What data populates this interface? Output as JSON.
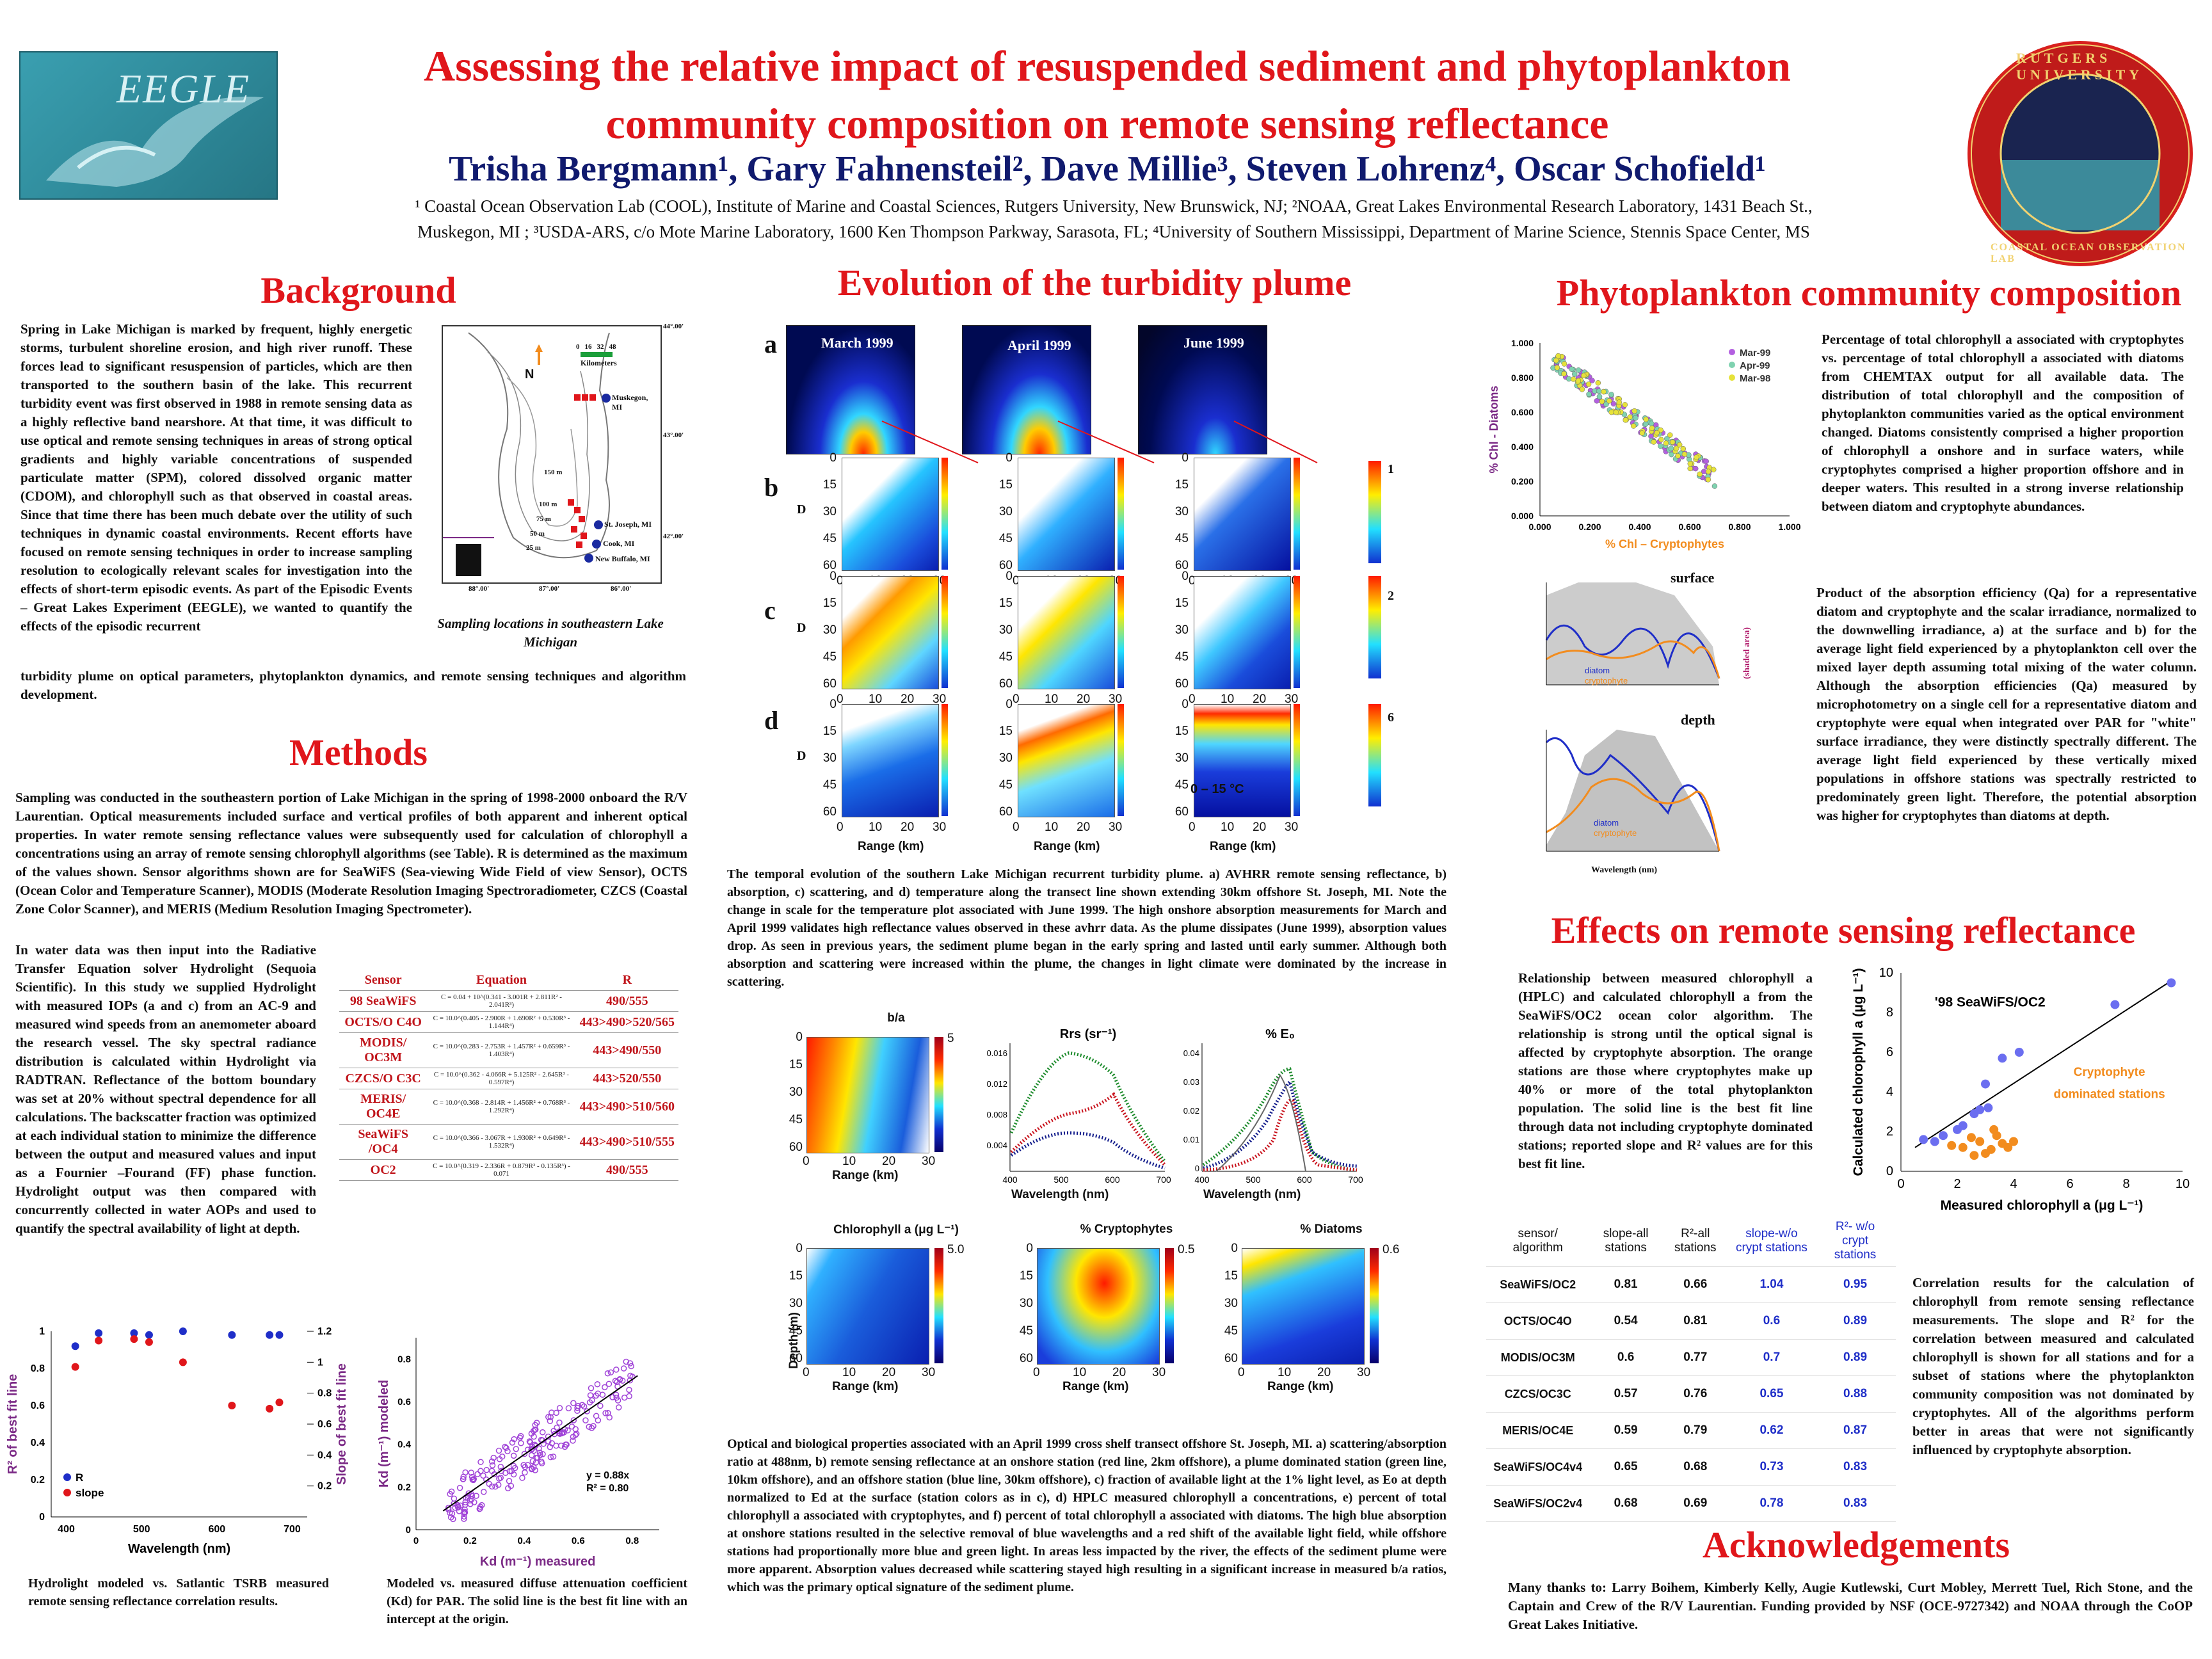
{
  "header": {
    "title_line1": "Assessing the relative impact of resuspended sediment and phytoplankton",
    "title_line2": "community composition on remote sensing reflectance",
    "authors": "Trisha Bergmann¹, Gary Fahnensteil², Dave Millie³, Steven Lohrenz⁴, Oscar Schofield¹",
    "affil_line1": "¹ Coastal Ocean Observation Lab (COOL), Institute of Marine and Coastal Sciences, Rutgers University, New Brunswick, NJ; ²NOAA, Great Lakes Environmental Research Laboratory, 1431 Beach St.,",
    "affil_line2": "Muskegon, MI ; ³USDA-ARS, c/o Mote Marine Laboratory, 1600 Ken Thompson Parkway, Sarasota, FL; ⁴University of Southern Mississippi, Department of Marine Science, Stennis Space Center, MS",
    "left_logo_text": "EEGLE",
    "right_logo_top": "RUTGERS UNIVERSITY",
    "right_logo_bottom": "COASTAL OCEAN OBSERVATION LAB"
  },
  "background": {
    "heading": "Background",
    "text": "Spring in Lake Michigan is marked by frequent, highly energetic storms, turbulent shoreline erosion, and high river runoff. These forces lead to significant resuspension of particles, which are then transported to the southern basin of the lake. This recurrent turbidity event was first observed in 1988 in remote sensing data as a highly reflective band nearshore. At that time, it was difficult to use optical and remote sensing techniques in areas of strong optical gradients and highly variable concentrations of suspended particulate matter (SPM), colored dissolved organic matter (CDOM), and chlorophyll such as that observed in coastal areas. Since that time there has been much debate over the utility of such techniques in dynamic coastal environments. Recent efforts have focused on remote sensing techniques in order to increase sampling resolution to ecologically relevant scales for investigation into the effects of short-term episodic events. As part of the Episodic Events – Great Lakes Experiment (EEGLE), we wanted to quantify the effects of the episodic recurrent",
    "text_cont": "turbidity plume on optical parameters, phytoplankton dynamics, and remote sensing techniques and algorithm development.",
    "map_caption": "Sampling locations in southeastern Lake Michigan",
    "map_labels": [
      "Kilometers",
      "N",
      "Muskegon, MI",
      "St. Joseph, MI",
      "Cook, MI",
      "New Buffalo, MI",
      "150 m",
      "100 m",
      "75 m",
      "50 m",
      "25 m",
      "44°.00'",
      "43°.00'",
      "42°.00'",
      "88°.00'",
      "87°.00'",
      "86°.00'",
      "0",
      "16",
      "32",
      "48"
    ]
  },
  "methods": {
    "heading": "Methods",
    "text1": "Sampling was conducted in the southeastern portion of Lake Michigan in the spring of 1998-2000 onboard the R/V Laurentian. Optical measurements included surface and vertical profiles of both apparent and inherent optical properties. In water remote sensing reflectance values were subsequently used for calculation of chlorophyll a concentrations using an array of remote sensing chlorophyll algorithms (see Table). R is determined as the maximum of the values shown. Sensor algorithms shown are for SeaWiFS (Sea-viewing Wide Field of view Sensor), OCTS (Ocean Color and Temperature Scanner), MODIS (Moderate Resolution Imaging Spectroradiometer, CZCS (Coastal Zone Color Scanner), and MERIS (Medium Resolution Imaging Spectrometer).",
    "text2": "In water data was then input into the Radiative Transfer Equation solver Hydrolight (Sequoia Scientific). In this study we supplied Hydrolight with measured IOPs (a and c) from an AC-9 and measured wind speeds from an anemometer aboard the research vessel. The sky spectral radiance distribution is calculated within Hydrolight via RADTRAN. Reflectance of the bottom boundary was set at 20% without spectral dependence for all calculations. The backscatter fraction was optimized at each individual station to minimize the difference between the output and measured values and input as a Fournier –Fourand (FF) phase function. Hydrolight output was then compared with concurrently collected in water AOPs and used to quantify the spectral availability of light at depth.",
    "table_headers": [
      "Sensor",
      "Equation",
      "R"
    ],
    "table_rows": [
      {
        "sensor": "98 SeaWiFS",
        "eq": "C = 0.04 + 10^(0.341 - 3.001R + 2.811R² - 2.041R³)",
        "r": "490/555"
      },
      {
        "sensor": "OCTS/O C4O",
        "eq": "C = 10.0^(0.405 - 2.900R + 1.690R² + 0.530R³ - 1.144R⁴)",
        "r": "443>490>520/565"
      },
      {
        "sensor": "MODIS/ OC3M",
        "eq": "C = 10.0^(0.283 - 2.753R + 1.457R² + 0.659R³ - 1.403R⁴)",
        "r": "443>490/550"
      },
      {
        "sensor": "CZCS/O C3C",
        "eq": "C = 10.0^(0.362 - 4.066R + 5.125R² - 2.645R³ - 0.597R⁴)",
        "r": "443>520/550"
      },
      {
        "sensor": "MERIS/ OC4E",
        "eq": "C = 10.0^(0.368 - 2.814R + 1.456R² + 0.768R³ - 1.292R⁴)",
        "r": "443>490>510/560"
      },
      {
        "sensor": "SeaWiFS /OC4",
        "eq": "C = 10.0^(0.366 - 3.067R + 1.930R² + 0.649R³ - 1.532R⁴)",
        "r": "443>490>510/555"
      },
      {
        "sensor": "OC2",
        "eq": "C = 10.0^(0.319 - 2.336R + 0.879R² - 0.135R³) - 0.071",
        "r": "490/555"
      }
    ],
    "chart1_caption": "Hydrolight modeled vs. Satlantic TSRB measured remote sensing reflectance correlation results.",
    "chart2_caption": "Modeled vs. measured diffuse attenuation coefficient (Kd) for PAR. The solid line is the best fit line with an intercept at the origin."
  },
  "evolution": {
    "heading": "Evolution of the turbidity plume",
    "row_labels": [
      "a",
      "b",
      "c",
      "d"
    ],
    "months": [
      "March 1999",
      "April 1999",
      "June 1999"
    ],
    "depth_ticks": [
      "0",
      "15",
      "30",
      "45",
      "60"
    ],
    "range_ticks": [
      "0",
      "10",
      "20",
      "30"
    ],
    "range_label": "Range (km)",
    "d_label": "D",
    "colorbar_top": [
      "1",
      "2",
      "6"
    ],
    "temp_label": "0 – 15 °C",
    "caption": "The temporal evolution of the southern Lake Michigan recurrent turbidity plume. a) AVHRR remote sensing reflectance, b) absorption, c) scattering, and d) temperature along the transect line shown extending 30km offshore St. Joseph, MI. Note the change in scale for the temperature plot associated with June 1999. The high onshore absorption measurements for March and April 1999 validates high reflectance values observed in these avhrr data. As the plume dissipates (June 1999), absorption values drop. As seen in previous years, the sediment plume began in the early spring and lasted until early summer. Although both absorption and scattering were increased within the plume, the changes in light climate were dominated by the increase in scattering.",
    "april_caption": "Optical and biological properties associated with an April 1999 cross shelf transect offshore St. Joseph, MI. a) scattering/absorption ratio at 488nm, b) remote sensing reflectance at an onshore station (red line, 2km offshore), a plume dominated station (green line, 10km offshore), and an offshore station (blue line, 30km offshore), c) fraction of available light at the 1% light level, as Eo at depth normalized to Ed at the surface (station colors as in c), d) HPLC measured chlorophyll a concentrations, e) percent of total chlorophyll a associated with cryptophytes, and f) percent of total chlorophyll a associated with diatoms. The high blue absorption at onshore stations resulted in the selective removal of blue wavelengths and a red shift of the available light field, while offshore stations had proportionally more blue and green light. In areas less impacted by the river, the effects of the sediment plume were more apparent. Absorption values decreased while scattering stayed high resulting in a significant increase in measured b/a ratios, which was the primary optical signature of the sediment plume."
  },
  "april_panels": {
    "ba_title": "b/a",
    "ba_cbar_max": "5",
    "rrs_title": "Rrs (sr⁻¹)",
    "eo_title": "% E₀",
    "chl_title": "Chlorophyll a (μg L⁻¹)",
    "chl_cbar_max": "5.0",
    "crypto_title": "% Cryptophytes",
    "crypto_cbar_max": "0.5",
    "diatom_title": "% Diatoms",
    "diatom_cbar_max": "0.6",
    "depth_label": "Depth (m)",
    "range_label": "Range (km)",
    "wavelength_label": "Wavelength (nm)",
    "rrs_yticks": [
      "0.016",
      "0.012",
      "0.008",
      "0.004"
    ],
    "eo_yticks": [
      "0.04",
      "0.03",
      "0.02",
      "0.01",
      "0"
    ],
    "wl_ticks": [
      "400",
      "500",
      "600",
      "700"
    ]
  },
  "phyto": {
    "heading": "Phytoplankton community composition",
    "text1": "Percentage of total chlorophyll a associated with cryptophytes vs. percentage of total chlorophyll a associated with diatoms from CHEMTAX output for all available data. The distribution of total chlorophyll and the composition of phytoplankton communities varied as the optical environment changed. Diatoms consistently comprised a higher proportion of chlorophyll a onshore and in surface waters, while cryptophytes comprised a higher proportion offshore and in deeper waters. This resulted in a strong inverse relationship between diatom and cryptophyte abundances.",
    "text2": "Product of the absorption efficiency (Qa) for a representative diatom and cryptophyte and the scalar irradiance, normalized to the downwelling irradiance, a) at the surface and b) for the average light field experienced by a phytoplankton cell over the mixed layer depth assuming total mixing of the water column. Although the absorption efficiencies (Qa) measured by microphotometry on a single cell for a representative diatom and cryptophyte were equal when integrated over PAR for \"white\" surface irradiance, they were distinctly spectrally different. The average light field experienced by these vertically mixed populations in offshore stations was spectrally restricted to predominately green light. Therefore, the potential absorption was higher for cryptophytes than diatoms at depth.",
    "surface_label": "surface",
    "depth_label": "depth",
    "diatom_label": "diatom",
    "crypto_label": "cryptophyte",
    "wavelength_label": "Wavelength (nm)",
    "shaded_label": "(shaded area)"
  },
  "effects": {
    "heading": "Effects on remote sensing reflectance",
    "text": "Relationship between measured chlorophyll a (HPLC) and calculated chlorophyll a from the SeaWiFS/OC2 ocean color algorithm. The relationship is strong until the optical signal is affected by cryptophyte absorption. The orange stations are those where cryptophytes make up 40% or more of the total phytoplankton population. The solid line is the best fit line through data not including cryptophyte dominated stations; reported slope and R² values are for this best fit line.",
    "table_headers": [
      "sensor/ algorithm",
      "slope-all stations",
      "R²-all stations",
      "slope-w/o crypt stations",
      "R²- w/o crypt stations"
    ],
    "table_rows": [
      [
        "SeaWiFS/OC2",
        "0.81",
        "0.66",
        "1.04",
        "0.95"
      ],
      [
        "OCTS/OC4O",
        "0.54",
        "0.81",
        "0.6",
        "0.89"
      ],
      [
        "MODIS/OC3M",
        "0.6",
        "0.77",
        "0.7",
        "0.89"
      ],
      [
        "CZCS/OC3C",
        "0.57",
        "0.76",
        "0.65",
        "0.88"
      ],
      [
        "MERIS/OC4E",
        "0.59",
        "0.79",
        "0.62",
        "0.87"
      ],
      [
        "SeaWiFS/OC4v4",
        "0.65",
        "0.68",
        "0.73",
        "0.83"
      ],
      [
        "SeaWiFS/OC2v4",
        "0.68",
        "0.69",
        "0.78",
        "0.83"
      ]
    ],
    "table_text": "Correlation results for the calculation of chlorophyll from remote sensing reflectance measurements. The slope and R² for the correlation between measured and calculated chlorophyll is shown for all stations and for a subset of stations where the phytoplankton community composition was not dominated by cryptophytes. All of the algorithms perform better in areas that were not significantly influenced by cryptophyte absorption."
  },
  "ack": {
    "heading": "Acknowledgements",
    "text": "Many thanks to: Larry Boihem, Kimberly Kelly, Augie Kutlewski, Curt Mobley, Merrett Tuel, Rich Stone, and the Captain and Crew of the R/V Laurentian. Funding provided by NSF (OCE-9727342) and NOAA through the CoOP Great Lakes Initiative."
  },
  "chart_data": [
    {
      "type": "scatter",
      "id": "r2-slope-vs-wavelength",
      "xlabel": "Wavelength (nm)",
      "ylabel": "R² of best fit line",
      "y2label": "Slope of best fit line",
      "xlim": [
        380,
        720
      ],
      "ylim": [
        0,
        1
      ],
      "y2lim": [
        0,
        1.2
      ],
      "xticks": [
        "400",
        "500",
        "600",
        "700"
      ],
      "yticks": [
        "0",
        "0.2",
        "0.4",
        "0.6",
        "0.8",
        "1"
      ],
      "y2ticks": [
        "0.2",
        "0.4",
        "0.6",
        "0.8",
        "1",
        "1.2"
      ],
      "series": [
        {
          "name": "R",
          "color": "#1f2ec8",
          "axis": "left",
          "x": [
            412,
            443,
            490,
            510,
            555,
            620,
            670,
            683
          ],
          "values": [
            0.92,
            0.99,
            0.99,
            0.98,
            1.0,
            0.98,
            0.98,
            0.98
          ]
        },
        {
          "name": "slope",
          "color": "#e0161b",
          "axis": "right",
          "x": [
            412,
            443,
            490,
            510,
            555,
            620,
            670,
            683
          ],
          "values": [
            0.97,
            1.14,
            1.15,
            1.13,
            1.0,
            0.72,
            0.7,
            0.74
          ]
        }
      ]
    },
    {
      "type": "scatter",
      "id": "kd-modeled-vs-measured",
      "xlabel": "Kd (m⁻¹) measured",
      "ylabel": "Kd (m⁻¹) modeled",
      "xlim": [
        0,
        0.9
      ],
      "ylim": [
        0,
        0.9
      ],
      "xticks": [
        "0",
        "0.2",
        "0.4",
        "0.6",
        "0.8"
      ],
      "yticks": [
        "0",
        "0.2",
        "0.4",
        "0.6",
        "0.8"
      ],
      "annotation": [
        "y = 0.88x",
        "R² = 0.80"
      ],
      "fit_slope": 0.88,
      "color": "#a043d8"
    },
    {
      "type": "scatter",
      "id": "chl-crypto-vs-diatoms",
      "xlabel": "% Chl – Cryptophytes",
      "ylabel": "% Chl - Diatoms",
      "xlim": [
        0,
        1
      ],
      "ylim": [
        0,
        1
      ],
      "xticks": [
        "0.000",
        "0.200",
        "0.400",
        "0.600",
        "0.800",
        "1.000"
      ],
      "yticks": [
        "0.000",
        "0.200",
        "0.400",
        "0.600",
        "0.800",
        "1.000"
      ],
      "series": [
        {
          "name": "Mar-99",
          "color": "#b35fe0"
        },
        {
          "name": "Apr-99",
          "color": "#7fd2b0"
        },
        {
          "name": "Mar-98",
          "color": "#e6e23a"
        }
      ]
    },
    {
      "type": "scatter",
      "id": "measured-vs-calculated-chl",
      "title": "'98 SeaWiFS/OC2",
      "xlabel": "Measured chlorophyll a (μg L⁻¹)",
      "ylabel": "Calculated chlorophyll a (μg L⁻¹)",
      "xlim": [
        0,
        10
      ],
      "ylim": [
        0,
        10
      ],
      "xticks": [
        "0",
        "2",
        "4",
        "6",
        "8",
        "10"
      ],
      "yticks": [
        "0",
        "2",
        "4",
        "6",
        "8",
        "10"
      ],
      "annotation": "Cryptophyte dominated stations",
      "series": [
        {
          "name": "other",
          "color": "#6b6ef0",
          "x": [
            0.8,
            1.2,
            1.5,
            2.0,
            2.6,
            2.8,
            3.1,
            3.6,
            4.2,
            7.6,
            9.6,
            3.0,
            2.2
          ],
          "values": [
            1.6,
            1.5,
            1.8,
            2.1,
            2.9,
            3.1,
            3.2,
            5.7,
            6.0,
            8.4,
            9.5,
            4.4,
            2.3
          ]
        },
        {
          "name": "cryptophyte",
          "color": "#f28c1e",
          "x": [
            1.8,
            2.2,
            2.5,
            2.8,
            3.0,
            3.2,
            3.4,
            3.6,
            3.8,
            4.0,
            2.6,
            3.3
          ],
          "values": [
            1.3,
            1.2,
            1.7,
            1.5,
            0.9,
            1.1,
            1.8,
            1.4,
            1.2,
            1.5,
            0.8,
            2.1
          ]
        }
      ]
    }
  ]
}
